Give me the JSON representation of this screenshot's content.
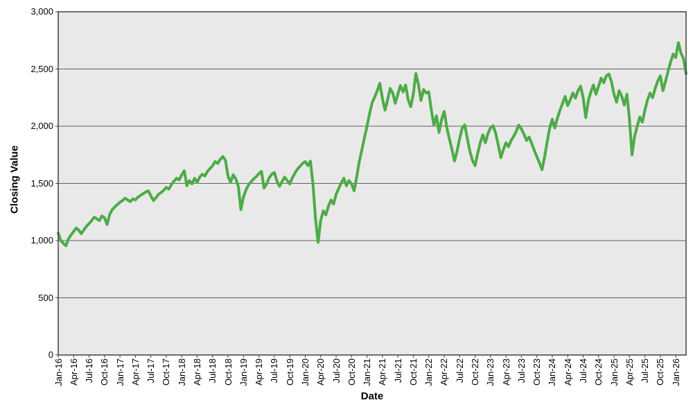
{
  "chart": {
    "y_axis_title": "Closing Value",
    "x_axis_title": "Date",
    "y_tick_labels": [
      "0",
      "500",
      "1,000",
      "1,500",
      "2,000",
      "2,500",
      "3,000"
    ],
    "x_tick_labels": [
      "Jan-16",
      "Apr-16",
      "Jul-16",
      "Oct-16",
      "Jan-17",
      "Apr-17",
      "Jul-17",
      "Oct-17",
      "Jan-18",
      "Apr-18",
      "Jul-18",
      "Oct-18",
      "Jan-19",
      "Apr-19",
      "Jul-19",
      "Oct-19",
      "Jan-20",
      "Apr-20",
      "Jul-20",
      "Oct-20",
      "Jan-21",
      "Apr-21",
      "Jul-21",
      "Oct-21",
      "Jan-22",
      "Apr-22",
      "Jul-22",
      "Oct-22",
      "Jan-23",
      "Apr-23",
      "Jul-23",
      "Oct-23",
      "Jan-24",
      "Apr-24",
      "Jul-24",
      "Oct-24",
      "Jan-25",
      "Apr-25",
      "Jul-25",
      "Oct-25",
      "Jan-26"
    ],
    "colors": {
      "line": "#4dab47",
      "plot_background": "#e9e9e9",
      "gridline": "#606060",
      "plot_border": "#404040",
      "tick": "#404040",
      "label_text": "#000000"
    }
  },
  "chart_data": {
    "type": "line",
    "title": "",
    "xlabel": "Date",
    "ylabel": "Closing Value",
    "x_start": "Jan-2016",
    "x_end": "Mar-2026",
    "x_step_months": 0.5,
    "ylim": [
      0,
      3000
    ],
    "y_tick_interval": 500,
    "x_tick_interval_months": 3,
    "grid": "horizontal",
    "legend": "none",
    "series": [
      {
        "name": "Closing Value",
        "color": "#4dab47",
        "values": [
          1065,
          1000,
          975,
          955,
          1015,
          1050,
          1080,
          1110,
          1090,
          1060,
          1095,
          1125,
          1150,
          1175,
          1205,
          1190,
          1175,
          1215,
          1200,
          1140,
          1230,
          1270,
          1295,
          1315,
          1335,
          1350,
          1370,
          1355,
          1340,
          1365,
          1355,
          1380,
          1395,
          1410,
          1425,
          1435,
          1390,
          1350,
          1375,
          1405,
          1420,
          1440,
          1465,
          1450,
          1490,
          1520,
          1545,
          1530,
          1575,
          1610,
          1480,
          1525,
          1495,
          1545,
          1510,
          1555,
          1580,
          1565,
          1605,
          1630,
          1655,
          1690,
          1675,
          1710,
          1735,
          1700,
          1560,
          1510,
          1575,
          1540,
          1475,
          1270,
          1380,
          1445,
          1490,
          1515,
          1540,
          1560,
          1585,
          1605,
          1460,
          1495,
          1550,
          1580,
          1595,
          1520,
          1475,
          1515,
          1555,
          1525,
          1495,
          1550,
          1590,
          1625,
          1650,
          1675,
          1690,
          1655,
          1695,
          1495,
          1190,
          985,
          1175,
          1260,
          1225,
          1300,
          1355,
          1320,
          1405,
          1455,
          1505,
          1545,
          1480,
          1525,
          1495,
          1435,
          1555,
          1690,
          1790,
          1900,
          2000,
          2110,
          2205,
          2255,
          2310,
          2375,
          2240,
          2140,
          2230,
          2330,
          2290,
          2200,
          2280,
          2355,
          2300,
          2360,
          2230,
          2170,
          2280,
          2460,
          2365,
          2225,
          2320,
          2290,
          2300,
          2140,
          2010,
          2090,
          1945,
          2060,
          2130,
          1990,
          1890,
          1800,
          1695,
          1780,
          1890,
          1985,
          2010,
          1890,
          1780,
          1700,
          1655,
          1760,
          1855,
          1925,
          1855,
          1935,
          1985,
          2005,
          1940,
          1840,
          1725,
          1795,
          1855,
          1820,
          1875,
          1910,
          1955,
          2010,
          1975,
          1930,
          1875,
          1905,
          1850,
          1790,
          1735,
          1680,
          1620,
          1730,
          1860,
          1985,
          2060,
          1985,
          2070,
          2140,
          2200,
          2260,
          2180,
          2230,
          2290,
          2245,
          2310,
          2350,
          2250,
          2075,
          2220,
          2300,
          2360,
          2280,
          2350,
          2420,
          2380,
          2440,
          2455,
          2390,
          2280,
          2210,
          2310,
          2260,
          2185,
          2280,
          2060,
          1750,
          1910,
          2000,
          2080,
          2035,
          2140,
          2230,
          2290,
          2250,
          2330,
          2395,
          2440,
          2310,
          2390,
          2480,
          2560,
          2630,
          2600,
          2730,
          2640,
          2590,
          2460
        ]
      }
    ]
  }
}
